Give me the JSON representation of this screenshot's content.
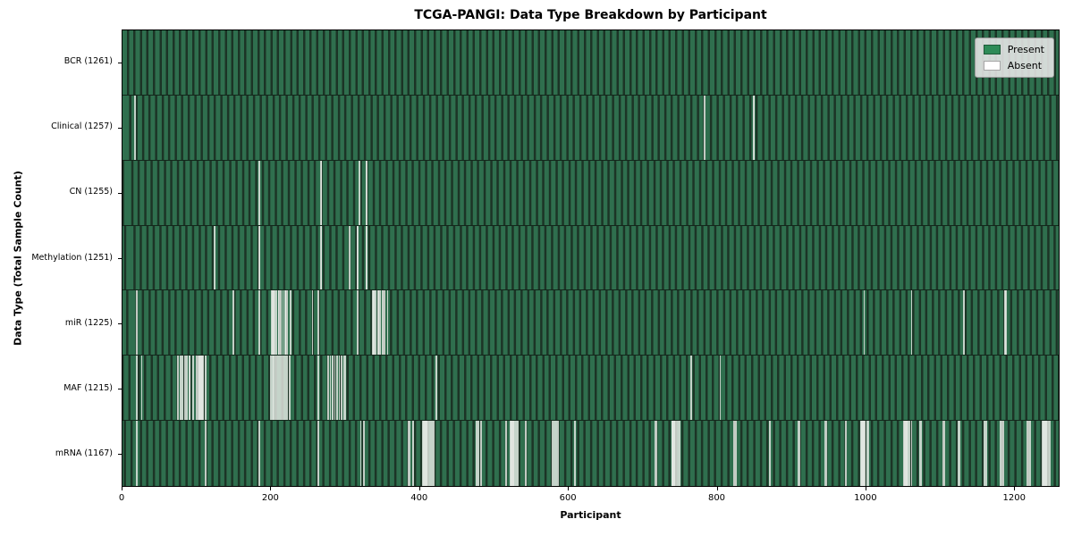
{
  "colors": {
    "present_legend": "#2e8b57",
    "absent_legend": "#ffffff",
    "plot_stripe_green": "#2f6f4e",
    "plot_stripe_dark": "#1c3426",
    "absent_line": "#e6eae5",
    "legend_background": "#e9e9e9"
  },
  "chart_data": {
    "type": "heatmap",
    "title": "TCGA-PANGI: Data Type Breakdown by Participant",
    "xlabel": "Participant",
    "ylabel": "Data Type (Total Sample Count)",
    "legend": [
      "Present",
      "Absent"
    ],
    "legend_position": "upper right",
    "x_ticks": [
      0,
      200,
      400,
      600,
      800,
      1000,
      1200
    ],
    "xlim": [
      0,
      1261
    ],
    "n_participants": 1261,
    "rows": [
      {
        "data_type": "BCR",
        "label": "BCR (1261)",
        "present_count": 1261,
        "absent_count": 0,
        "absent_participants": []
      },
      {
        "data_type": "Clinical",
        "label": "Clinical (1257)",
        "present_count": 1257,
        "absent_count": 4,
        "absent_participants": [
          17,
          784,
          850,
          851
        ]
      },
      {
        "data_type": "CN",
        "label": "CN (1255)",
        "present_count": 1255,
        "absent_count": 6,
        "absent_participants": [
          184,
          267,
          268,
          319,
          328,
          329
        ]
      },
      {
        "data_type": "Methylation",
        "label": "Methylation (1251)",
        "present_count": 1251,
        "absent_count": 10,
        "absent_participants": [
          124,
          184,
          185,
          267,
          268,
          306,
          316,
          317,
          328,
          329
        ]
      },
      {
        "data_type": "miR",
        "label": "miR (1225)",
        "present_count": 1225,
        "absent_count": 36,
        "absent_participants": [
          19,
          149,
          184,
          201,
          202,
          203,
          204,
          205,
          207,
          210,
          211,
          213,
          216,
          219,
          220,
          222,
          226,
          256,
          264,
          317,
          337,
          338,
          339,
          341,
          344,
          345,
          347,
          350,
          351,
          353,
          357,
          999,
          1063,
          1133,
          1189,
          1190
        ]
      },
      {
        "data_type": "MAF",
        "label": "MAF (1215)",
        "present_count": 1215,
        "absent_count": 46,
        "absent_participants": [
          19,
          26,
          75,
          78,
          81,
          84,
          87,
          90,
          91,
          95,
          100,
          102,
          103,
          104,
          105,
          106,
          107,
          108,
          112,
          200,
          202,
          203,
          204,
          206,
          208,
          210,
          212,
          214,
          216,
          218,
          220,
          222,
          225,
          264,
          277,
          280,
          283,
          286,
          289,
          292,
          295,
          298,
          300,
          423,
          766,
          805
        ]
      },
      {
        "data_type": "mRNA",
        "label": "mRNA (1167)",
        "present_count": 1167,
        "absent_count": 94,
        "absent_participants": [
          19,
          112,
          184,
          264,
          321,
          325,
          385,
          387,
          391,
          405,
          406,
          407,
          408,
          409,
          410,
          411,
          413,
          415,
          417,
          419,
          477,
          479,
          483,
          517,
          523,
          524,
          525,
          526,
          527,
          529,
          531,
          533,
          543,
          579,
          581,
          583,
          585,
          587,
          609,
          717,
          719,
          740,
          741,
          742,
          743,
          744,
          746,
          748,
          750,
          824,
          826,
          872,
          910,
          912,
          946,
          948,
          974,
          995,
          996,
          997,
          998,
          1000,
          1003,
          1005,
          1053,
          1054,
          1055,
          1056,
          1057,
          1060,
          1063,
          1074,
          1076,
          1105,
          1107,
          1126,
          1128,
          1161,
          1163,
          1183,
          1185,
          1187,
          1219,
          1221,
          1223,
          1239,
          1240,
          1241,
          1242,
          1243,
          1244,
          1245,
          1247,
          1249
        ]
      }
    ]
  }
}
